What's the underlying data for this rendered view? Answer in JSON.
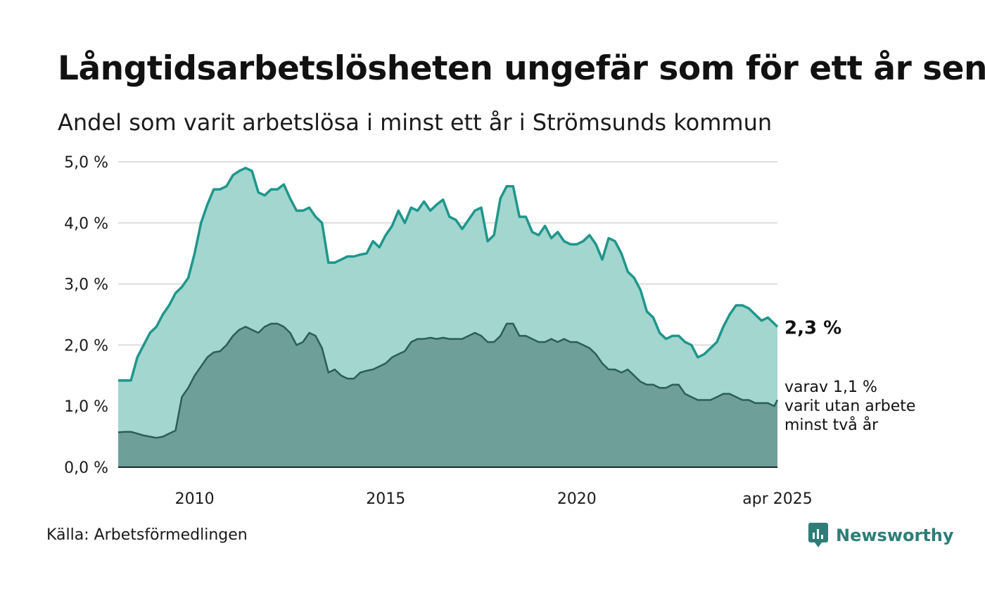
{
  "title": "Långtidsarbetslösheten ungefär som för ett år sen",
  "subtitle": "Andel som varit arbetslösa i minst ett år i Strömsunds kommun",
  "source": "Källa: Arbetsförmedlingen",
  "brand": {
    "name": "Newsworthy",
    "icon": "newsworthy-logo-icon"
  },
  "colors": {
    "upper_line": "#1f968b",
    "upper_fill": "#a2d6cf",
    "lower_line": "#2a5e58",
    "lower_fill": "#6f9f99",
    "grid": "#dddddd",
    "axis": "#222222",
    "brand": "#2e7d78"
  },
  "chart_data": {
    "type": "area",
    "x_start": "2008-01",
    "x_end": "2025-04",
    "x_ticks": [
      {
        "x": "2010-01",
        "label": "2010"
      },
      {
        "x": "2015-01",
        "label": "2015"
      },
      {
        "x": "2020-01",
        "label": "2020"
      },
      {
        "x": "2025-04",
        "label": "apr 2025"
      }
    ],
    "y_ticks": [
      "0,0 %",
      "1,0 %",
      "2,0 %",
      "3,0 %",
      "4,0 %",
      "5,0 %"
    ],
    "ylim": [
      0,
      5
    ],
    "grid": true,
    "end_labels": {
      "upper": "2,3 %",
      "lower_lines": [
        "varav 1,1 %",
        "varit utan arbete",
        "minst två år"
      ]
    },
    "series": [
      {
        "key": "upper",
        "points": [
          [
            "2008-01",
            1.42
          ],
          [
            "2008-03",
            1.42
          ],
          [
            "2008-05",
            1.42
          ],
          [
            "2008-07",
            1.8
          ],
          [
            "2008-09",
            2.0
          ],
          [
            "2008-11",
            2.2
          ],
          [
            "2009-01",
            2.3
          ],
          [
            "2009-03",
            2.5
          ],
          [
            "2009-05",
            2.65
          ],
          [
            "2009-07",
            2.85
          ],
          [
            "2009-09",
            2.95
          ],
          [
            "2009-11",
            3.1
          ],
          [
            "2010-01",
            3.5
          ],
          [
            "2010-03",
            4.0
          ],
          [
            "2010-05",
            4.3
          ],
          [
            "2010-07",
            4.55
          ],
          [
            "2010-09",
            4.55
          ],
          [
            "2010-11",
            4.6
          ],
          [
            "2011-01",
            4.78
          ],
          [
            "2011-03",
            4.85
          ],
          [
            "2011-05",
            4.9
          ],
          [
            "2011-07",
            4.85
          ],
          [
            "2011-09",
            4.5
          ],
          [
            "2011-11",
            4.45
          ],
          [
            "2012-01",
            4.55
          ],
          [
            "2012-03",
            4.55
          ],
          [
            "2012-05",
            4.63
          ],
          [
            "2012-07",
            4.4
          ],
          [
            "2012-09",
            4.2
          ],
          [
            "2012-11",
            4.2
          ],
          [
            "2013-01",
            4.25
          ],
          [
            "2013-03",
            4.1
          ],
          [
            "2013-05",
            4.0
          ],
          [
            "2013-07",
            3.35
          ],
          [
            "2013-09",
            3.35
          ],
          [
            "2013-11",
            3.4
          ],
          [
            "2014-01",
            3.45
          ],
          [
            "2014-03",
            3.45
          ],
          [
            "2014-05",
            3.48
          ],
          [
            "2014-07",
            3.5
          ],
          [
            "2014-09",
            3.7
          ],
          [
            "2014-11",
            3.6
          ],
          [
            "2015-01",
            3.8
          ],
          [
            "2015-03",
            3.95
          ],
          [
            "2015-05",
            4.2
          ],
          [
            "2015-07",
            4.0
          ],
          [
            "2015-09",
            4.25
          ],
          [
            "2015-11",
            4.2
          ],
          [
            "2016-01",
            4.35
          ],
          [
            "2016-03",
            4.2
          ],
          [
            "2016-05",
            4.3
          ],
          [
            "2016-07",
            4.38
          ],
          [
            "2016-09",
            4.1
          ],
          [
            "2016-11",
            4.05
          ],
          [
            "2017-01",
            3.9
          ],
          [
            "2017-03",
            4.05
          ],
          [
            "2017-05",
            4.2
          ],
          [
            "2017-07",
            4.25
          ],
          [
            "2017-09",
            3.7
          ],
          [
            "2017-11",
            3.8
          ],
          [
            "2018-01",
            4.4
          ],
          [
            "2018-03",
            4.6
          ],
          [
            "2018-05",
            4.6
          ],
          [
            "2018-07",
            4.1
          ],
          [
            "2018-09",
            4.1
          ],
          [
            "2018-11",
            3.85
          ],
          [
            "2019-01",
            3.8
          ],
          [
            "2019-03",
            3.95
          ],
          [
            "2019-05",
            3.75
          ],
          [
            "2019-07",
            3.85
          ],
          [
            "2019-09",
            3.7
          ],
          [
            "2019-11",
            3.65
          ],
          [
            "2020-01",
            3.65
          ],
          [
            "2020-03",
            3.7
          ],
          [
            "2020-05",
            3.8
          ],
          [
            "2020-07",
            3.65
          ],
          [
            "2020-09",
            3.4
          ],
          [
            "2020-11",
            3.75
          ],
          [
            "2021-01",
            3.7
          ],
          [
            "2021-03",
            3.5
          ],
          [
            "2021-05",
            3.2
          ],
          [
            "2021-07",
            3.1
          ],
          [
            "2021-09",
            2.9
          ],
          [
            "2021-11",
            2.55
          ],
          [
            "2022-01",
            2.45
          ],
          [
            "2022-03",
            2.2
          ],
          [
            "2022-05",
            2.1
          ],
          [
            "2022-07",
            2.15
          ],
          [
            "2022-09",
            2.15
          ],
          [
            "2022-11",
            2.05
          ],
          [
            "2023-01",
            2.0
          ],
          [
            "2023-03",
            1.8
          ],
          [
            "2023-05",
            1.85
          ],
          [
            "2023-07",
            1.95
          ],
          [
            "2023-09",
            2.05
          ],
          [
            "2023-11",
            2.3
          ],
          [
            "2024-01",
            2.5
          ],
          [
            "2024-03",
            2.65
          ],
          [
            "2024-05",
            2.65
          ],
          [
            "2024-07",
            2.6
          ],
          [
            "2024-09",
            2.5
          ],
          [
            "2024-11",
            2.4
          ],
          [
            "2025-01",
            2.45
          ],
          [
            "2025-03",
            2.35
          ],
          [
            "2025-04",
            2.3
          ]
        ]
      },
      {
        "key": "lower",
        "points": [
          [
            "2008-01",
            0.57
          ],
          [
            "2008-03",
            0.58
          ],
          [
            "2008-05",
            0.58
          ],
          [
            "2008-07",
            0.55
          ],
          [
            "2008-09",
            0.52
          ],
          [
            "2008-11",
            0.5
          ],
          [
            "2009-01",
            0.48
          ],
          [
            "2009-03",
            0.5
          ],
          [
            "2009-05",
            0.55
          ],
          [
            "2009-07",
            0.6
          ],
          [
            "2009-09",
            1.15
          ],
          [
            "2009-11",
            1.3
          ],
          [
            "2010-01",
            1.5
          ],
          [
            "2010-03",
            1.65
          ],
          [
            "2010-05",
            1.8
          ],
          [
            "2010-07",
            1.88
          ],
          [
            "2010-09",
            1.9
          ],
          [
            "2010-11",
            2.0
          ],
          [
            "2011-01",
            2.15
          ],
          [
            "2011-03",
            2.25
          ],
          [
            "2011-05",
            2.3
          ],
          [
            "2011-07",
            2.25
          ],
          [
            "2011-09",
            2.2
          ],
          [
            "2011-11",
            2.3
          ],
          [
            "2012-01",
            2.35
          ],
          [
            "2012-03",
            2.35
          ],
          [
            "2012-05",
            2.3
          ],
          [
            "2012-07",
            2.2
          ],
          [
            "2012-09",
            2.0
          ],
          [
            "2012-11",
            2.05
          ],
          [
            "2013-01",
            2.2
          ],
          [
            "2013-03",
            2.15
          ],
          [
            "2013-05",
            1.95
          ],
          [
            "2013-07",
            1.55
          ],
          [
            "2013-09",
            1.6
          ],
          [
            "2013-11",
            1.5
          ],
          [
            "2014-01",
            1.45
          ],
          [
            "2014-03",
            1.45
          ],
          [
            "2014-05",
            1.55
          ],
          [
            "2014-07",
            1.58
          ],
          [
            "2014-09",
            1.6
          ],
          [
            "2014-11",
            1.65
          ],
          [
            "2015-01",
            1.7
          ],
          [
            "2015-03",
            1.8
          ],
          [
            "2015-05",
            1.85
          ],
          [
            "2015-07",
            1.9
          ],
          [
            "2015-09",
            2.05
          ],
          [
            "2015-11",
            2.1
          ],
          [
            "2016-01",
            2.1
          ],
          [
            "2016-03",
            2.12
          ],
          [
            "2016-05",
            2.1
          ],
          [
            "2016-07",
            2.12
          ],
          [
            "2016-09",
            2.1
          ],
          [
            "2016-11",
            2.1
          ],
          [
            "2017-01",
            2.1
          ],
          [
            "2017-03",
            2.15
          ],
          [
            "2017-05",
            2.2
          ],
          [
            "2017-07",
            2.15
          ],
          [
            "2017-09",
            2.05
          ],
          [
            "2017-11",
            2.05
          ],
          [
            "2018-01",
            2.15
          ],
          [
            "2018-03",
            2.35
          ],
          [
            "2018-05",
            2.35
          ],
          [
            "2018-07",
            2.15
          ],
          [
            "2018-09",
            2.15
          ],
          [
            "2018-11",
            2.1
          ],
          [
            "2019-01",
            2.05
          ],
          [
            "2019-03",
            2.05
          ],
          [
            "2019-05",
            2.1
          ],
          [
            "2019-07",
            2.05
          ],
          [
            "2019-09",
            2.1
          ],
          [
            "2019-11",
            2.05
          ],
          [
            "2020-01",
            2.05
          ],
          [
            "2020-03",
            2.0
          ],
          [
            "2020-05",
            1.95
          ],
          [
            "2020-07",
            1.85
          ],
          [
            "2020-09",
            1.7
          ],
          [
            "2020-11",
            1.6
          ],
          [
            "2021-01",
            1.6
          ],
          [
            "2021-03",
            1.55
          ],
          [
            "2021-05",
            1.6
          ],
          [
            "2021-07",
            1.5
          ],
          [
            "2021-09",
            1.4
          ],
          [
            "2021-11",
            1.35
          ],
          [
            "2022-01",
            1.35
          ],
          [
            "2022-03",
            1.3
          ],
          [
            "2022-05",
            1.3
          ],
          [
            "2022-07",
            1.35
          ],
          [
            "2022-09",
            1.35
          ],
          [
            "2022-11",
            1.2
          ],
          [
            "2023-01",
            1.15
          ],
          [
            "2023-03",
            1.1
          ],
          [
            "2023-05",
            1.1
          ],
          [
            "2023-07",
            1.1
          ],
          [
            "2023-09",
            1.15
          ],
          [
            "2023-11",
            1.2
          ],
          [
            "2024-01",
            1.2
          ],
          [
            "2024-03",
            1.15
          ],
          [
            "2024-05",
            1.1
          ],
          [
            "2024-07",
            1.1
          ],
          [
            "2024-09",
            1.05
          ],
          [
            "2024-11",
            1.05
          ],
          [
            "2025-01",
            1.05
          ],
          [
            "2025-03",
            1.0
          ],
          [
            "2025-04",
            1.1
          ]
        ]
      }
    ]
  }
}
